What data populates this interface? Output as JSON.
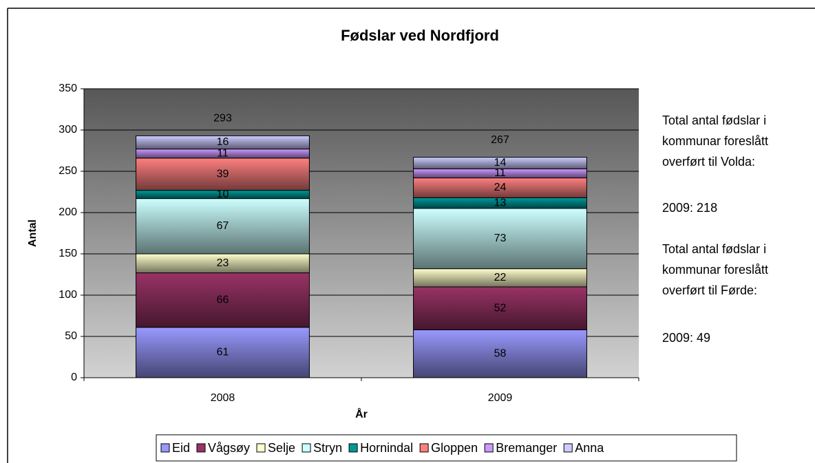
{
  "chart_data": {
    "type": "stacked_bar",
    "title": "Fødslar ved Nordfjord",
    "xlabel": "År",
    "ylabel": "Antal",
    "categories": [
      "2008",
      "2009"
    ],
    "series": [
      {
        "name": "Eid",
        "color": "#9999ff",
        "values": [
          61,
          58
        ]
      },
      {
        "name": "Vågsøy",
        "color": "#993366",
        "values": [
          66,
          52
        ]
      },
      {
        "name": "Selje",
        "color": "#ffffcc",
        "values": [
          23,
          22
        ]
      },
      {
        "name": "Stryn",
        "color": "#ccffff",
        "values": [
          67,
          73
        ]
      },
      {
        "name": "Hornindal",
        "color": "#009999",
        "values": [
          10,
          13
        ]
      },
      {
        "name": "Gloppen",
        "color": "#ff8080",
        "values": [
          39,
          24
        ]
      },
      {
        "name": "Bremanger",
        "color": "#cc99ff",
        "values": [
          11,
          11
        ]
      },
      {
        "name": "Anna",
        "color": "#ccccff",
        "values": [
          16,
          14
        ]
      }
    ],
    "totals": [
      293,
      267
    ],
    "ylim": [
      0,
      350
    ],
    "yticks": [
      0,
      50,
      100,
      150,
      200,
      250,
      300,
      350
    ],
    "grid": true,
    "legend": "bottom",
    "annotations": [
      "Total antal fødslar i kommunar foreslått overført til Volda:",
      "2009: 218",
      "Total antal fødslar i kommunar foreslått overført til Førde:",
      "2009: 49"
    ]
  }
}
